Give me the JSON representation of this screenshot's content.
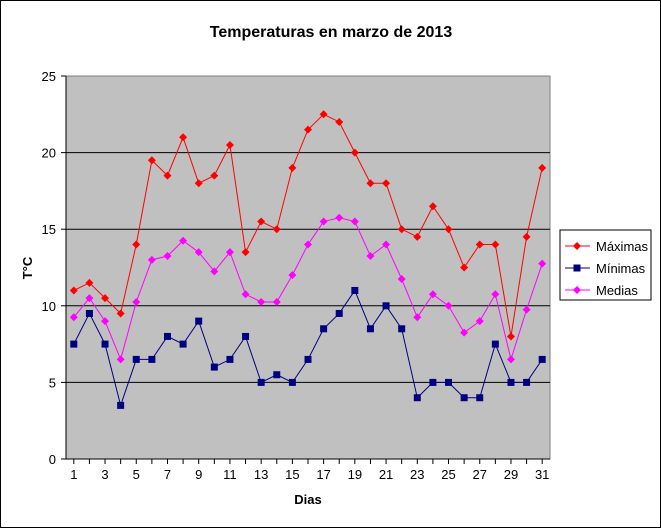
{
  "chart_data": {
    "type": "line",
    "title": "Temperaturas en marzo de 2013",
    "xlabel": "Dias",
    "ylabel": "T°C",
    "ylim": [
      0,
      25
    ],
    "yticks": [
      0,
      5,
      10,
      15,
      20,
      25
    ],
    "x": [
      1,
      2,
      3,
      4,
      5,
      6,
      7,
      8,
      9,
      10,
      11,
      12,
      13,
      14,
      15,
      16,
      17,
      18,
      19,
      20,
      21,
      22,
      23,
      24,
      25,
      26,
      27,
      28,
      29,
      30,
      31
    ],
    "xtick_labels": [
      "1",
      "3",
      "5",
      "7",
      "9",
      "11",
      "13",
      "15",
      "17",
      "19",
      "21",
      "23",
      "25",
      "27",
      "29",
      "31"
    ],
    "grid": true,
    "plot_background": "#c0c0c0",
    "legend_position": "right",
    "series": [
      {
        "name": "Máximas",
        "color": "#ff0000",
        "marker": "diamond",
        "values": [
          11,
          11.5,
          10.5,
          9.5,
          14,
          19.5,
          18.5,
          21,
          18,
          18.5,
          20.5,
          13.5,
          15.5,
          15,
          19,
          21.5,
          22.5,
          22,
          20,
          18,
          18,
          15,
          14.5,
          16.5,
          15,
          12.5,
          14,
          14,
          8,
          14.5,
          19
        ]
      },
      {
        "name": "Mínimas",
        "color": "#000080",
        "marker": "square",
        "values": [
          7.5,
          9.5,
          7.5,
          3.5,
          6.5,
          6.5,
          8,
          7.5,
          9,
          6,
          6.5,
          8,
          5,
          5.5,
          5,
          6.5,
          8.5,
          9.5,
          11,
          8.5,
          10,
          8.5,
          4,
          5,
          5,
          4,
          4,
          7.5,
          5,
          5,
          6.5
        ]
      },
      {
        "name": "Medias",
        "color": "#ff00ff",
        "marker": "diamond",
        "values": [
          9.25,
          10.5,
          9,
          6.5,
          10.25,
          13,
          13.25,
          14.25,
          13.5,
          12.25,
          13.5,
          10.75,
          10.25,
          10.25,
          12,
          14,
          15.5,
          15.75,
          15.5,
          13.25,
          14,
          11.75,
          9.25,
          10.75,
          10,
          8.25,
          9,
          10.75,
          6.5,
          9.75,
          12.75
        ]
      }
    ]
  }
}
